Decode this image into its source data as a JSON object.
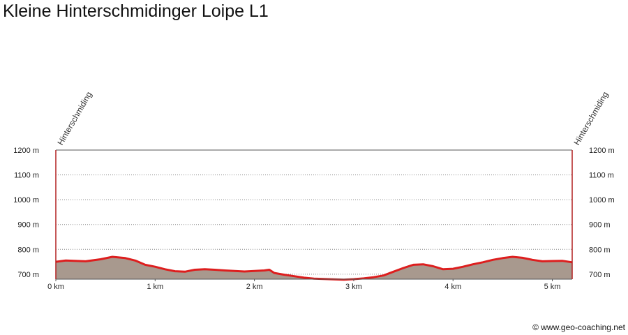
{
  "title": "Kleine Hinterschmidinger Loipe L1",
  "credit": "© www.geo-coaching.net",
  "chart_data": {
    "type": "area",
    "title": "Kleine Hinterschmidinger Loipe L1",
    "xlabel": "",
    "ylabel": "",
    "xlim": [
      0,
      5.2
    ],
    "ylim": [
      680,
      1200
    ],
    "grid": true,
    "y_ticks": [
      700,
      800,
      900,
      1000,
      1100,
      1200
    ],
    "y_tick_labels": [
      "700 m",
      "800 m",
      "900 m",
      "1000 m",
      "1100 m",
      "1200 m"
    ],
    "x_ticks": [
      0,
      1,
      2,
      3,
      4,
      5
    ],
    "x_tick_labels": [
      "0 km",
      "1 km",
      "2 km",
      "3 km",
      "4 km",
      "5 km"
    ],
    "waypoints": [
      {
        "name": "Hinterschmiding",
        "x": 0
      },
      {
        "name": "Hinterschmiding",
        "x": 5.2
      }
    ],
    "series": [
      {
        "color": "#dd1e1e",
        "fill": "#a8998e",
        "x": [
          0,
          0.1,
          0.3,
          0.45,
          0.57,
          0.7,
          0.8,
          0.9,
          1.0,
          1.1,
          1.2,
          1.3,
          1.4,
          1.5,
          1.6,
          1.7,
          1.8,
          1.9,
          2.0,
          2.1,
          2.15,
          2.2,
          2.3,
          2.4,
          2.5,
          2.6,
          2.75,
          2.9,
          3.0,
          3.1,
          3.2,
          3.3,
          3.4,
          3.5,
          3.6,
          3.7,
          3.8,
          3.9,
          4.0,
          4.1,
          4.2,
          4.3,
          4.4,
          4.5,
          4.6,
          4.7,
          4.8,
          4.9,
          5.0,
          5.1,
          5.2
        ],
        "y": [
          750,
          755,
          752,
          760,
          770,
          765,
          755,
          738,
          730,
          720,
          712,
          710,
          718,
          720,
          718,
          715,
          713,
          711,
          713,
          715,
          718,
          705,
          698,
          692,
          686,
          682,
          680,
          678,
          680,
          683,
          688,
          695,
          710,
          725,
          738,
          740,
          732,
          720,
          722,
          730,
          740,
          748,
          758,
          765,
          770,
          766,
          758,
          752,
          753,
          754,
          748
        ]
      }
    ]
  }
}
